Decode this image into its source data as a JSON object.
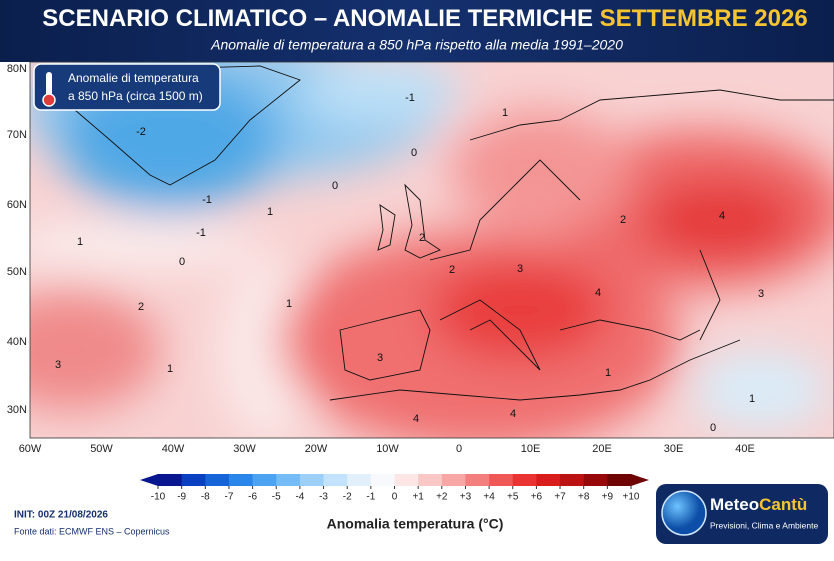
{
  "header": {
    "title": "SCENARIO CLIMATICO – ANOMALIE TERMICHE",
    "title_highlight": "SETTEMBRE 2026",
    "subtitle": "Anomalie di temperatura a 850 hPa rispetto alla media 1991–2020"
  },
  "info_box": {
    "line1": "Anomalie di temperatura",
    "line2": "a 850 hPa (circa 1500 m)"
  },
  "map": {
    "lat_labels": [
      "80N",
      "70N",
      "60N",
      "50N",
      "40N",
      "30N"
    ],
    "lon_labels": [
      "60W",
      "50W",
      "40W",
      "30W",
      "20W",
      "10W",
      "0",
      "10E",
      "20E",
      "30E",
      "40E"
    ],
    "contour_labels": [
      -1,
      1,
      -2,
      0,
      0,
      -1,
      1,
      -1,
      1,
      2,
      0,
      2,
      3,
      2,
      4,
      4,
      3,
      1,
      2,
      3,
      1,
      3,
      1,
      4,
      4,
      1,
      0
    ]
  },
  "colorbar": {
    "title": "Anomalia temperatura (°C)",
    "ticks": [
      -10,
      -9,
      -8,
      -7,
      -6,
      -5,
      -4,
      -3,
      -2,
      -1,
      0,
      {
        "value": 1,
        "label": "+1"
      },
      {
        "value": 2,
        "label": "+2"
      },
      {
        "value": 3,
        "label": "+3"
      },
      {
        "value": 4,
        "label": "+4"
      },
      {
        "value": 5,
        "label": "+5"
      },
      {
        "value": 6,
        "label": "+6"
      },
      {
        "value": 7,
        "label": "+7"
      },
      {
        "value": 8,
        "label": "+8"
      },
      {
        "value": 9,
        "label": "+9"
      },
      {
        "value": 10,
        "label": "+10"
      }
    ],
    "colors": [
      "#08178f",
      "#0a3fbf",
      "#1565d8",
      "#2b86ea",
      "#4ca3f2",
      "#74bcf6",
      "#9dd0f8",
      "#c3e2fb",
      "#e2f0fc",
      "#f7f9fc",
      "#fde6e6",
      "#fbc8c8",
      "#f8a6a6",
      "#f47f7f",
      "#f05858",
      "#ea3333",
      "#d91d1d",
      "#bd1212",
      "#970909",
      "#6e0404"
    ]
  },
  "footer": {
    "init": "INIT: 00Z 21/08/2026",
    "source": "Fonte dati: ECMWF ENS – Copernicus"
  },
  "logo": {
    "name_a": "Meteo",
    "name_b": "Cantù",
    "tagline": "Previsioni, Clima e Ambiente"
  }
}
